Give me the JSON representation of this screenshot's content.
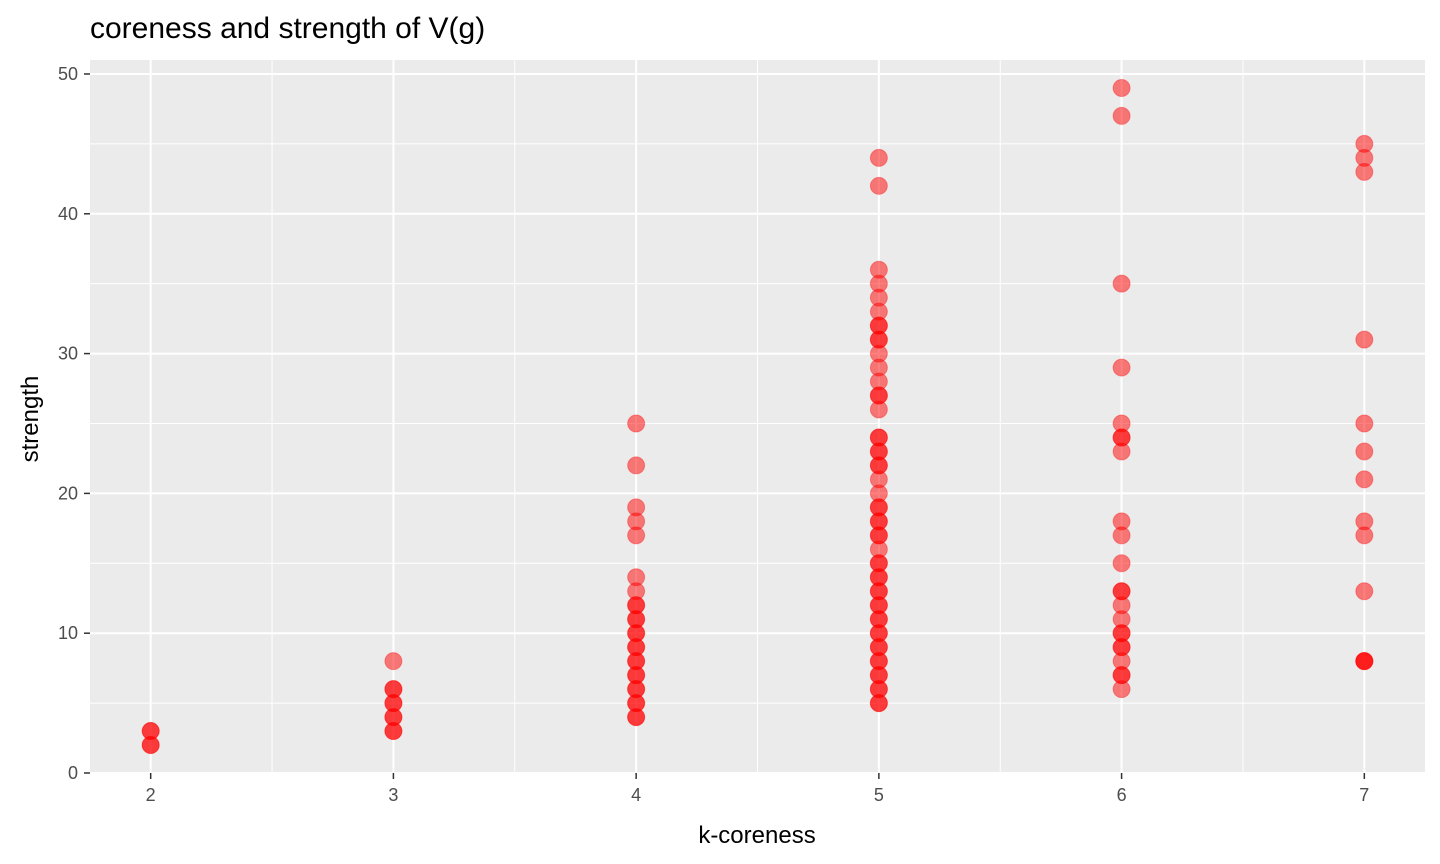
{
  "chart_data": {
    "type": "scatter",
    "title": "coreness and strength of V(g)",
    "xlabel": "k-coreness",
    "ylabel": "strength",
    "xlim": [
      1.75,
      7.25
    ],
    "ylim": [
      0,
      51
    ],
    "x_ticks": [
      2,
      3,
      4,
      5,
      6,
      7
    ],
    "y_ticks": [
      0,
      10,
      20,
      30,
      40,
      50
    ],
    "grid": true,
    "point_color": "#ff0000",
    "panel_background": "#ebebeb",
    "points_by_x": [
      {
        "x": 2,
        "y": [
          2,
          2,
          3,
          3
        ]
      },
      {
        "x": 3,
        "y": [
          3,
          3,
          4,
          4,
          5,
          5,
          6,
          6,
          8
        ]
      },
      {
        "x": 4,
        "y": [
          4,
          4,
          5,
          5,
          6,
          6,
          7,
          7,
          8,
          8,
          9,
          9,
          10,
          10,
          11,
          11,
          12,
          12,
          13,
          14,
          17,
          18,
          19,
          22,
          25
        ]
      },
      {
        "x": 5,
        "y": [
          5,
          5,
          6,
          6,
          7,
          7,
          8,
          8,
          9,
          9,
          10,
          10,
          11,
          11,
          12,
          12,
          13,
          13,
          14,
          14,
          15,
          15,
          16,
          17,
          17,
          18,
          18,
          19,
          19,
          20,
          21,
          22,
          22,
          23,
          23,
          24,
          24,
          26,
          27,
          27,
          28,
          29,
          30,
          31,
          31,
          32,
          32,
          33,
          34,
          35,
          36,
          42,
          44
        ]
      },
      {
        "x": 6,
        "y": [
          6,
          7,
          7,
          8,
          9,
          9,
          10,
          10,
          11,
          12,
          13,
          13,
          15,
          17,
          18,
          23,
          24,
          24,
          25,
          29,
          35,
          47,
          49
        ]
      },
      {
        "x": 7,
        "y": [
          8,
          8,
          8,
          13,
          17,
          18,
          21,
          23,
          25,
          31,
          43,
          44,
          45
        ]
      }
    ]
  }
}
